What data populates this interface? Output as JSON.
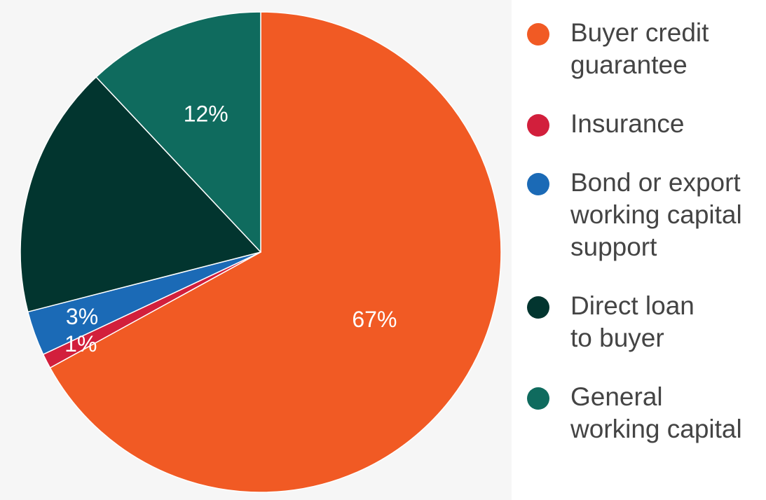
{
  "chart_data": {
    "type": "pie",
    "slices": [
      {
        "name": "Buyer credit guarantee",
        "value": 67,
        "color": "#f15a24",
        "label": "67%"
      },
      {
        "name": "Insurance",
        "value": 1,
        "color": "#d21f3c",
        "label": "1%"
      },
      {
        "name": "Bond or export working capital support",
        "value": 3,
        "color": "#1b6ab6",
        "label": "3%"
      },
      {
        "name": "Direct loan to buyer",
        "value": 17,
        "color": "#02352f",
        "label": ""
      },
      {
        "name": "General working capital",
        "value": 12,
        "color": "#0f6b5e",
        "label": "12%"
      }
    ],
    "legend_position": "right"
  },
  "legend": [
    {
      "text": "Buyer credit\nguarantee",
      "color": "#f15a24"
    },
    {
      "text": "Insurance",
      "color": "#d21f3c"
    },
    {
      "text": "Bond or export\nworking capital\nsupport",
      "color": "#1b6ab6"
    },
    {
      "text": "Direct loan\nto buyer",
      "color": "#02352f"
    },
    {
      "text": "General\nworking capital",
      "color": "#0f6b5e"
    }
  ]
}
